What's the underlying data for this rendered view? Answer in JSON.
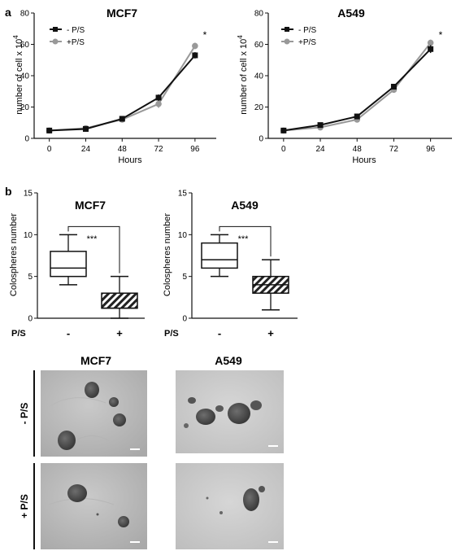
{
  "panel_labels": {
    "a": "a",
    "b": "b"
  },
  "line_charts": [
    {
      "title": "MCF7",
      "ylabel_main": "number of cell x 10",
      "ylabel_exp": "4",
      "xlabel": "Hours",
      "star": "*",
      "legend": [
        "- P/S",
        "+P/S"
      ]
    },
    {
      "title": "A549",
      "ylabel_main": "number of cell x 10",
      "ylabel_exp": "4",
      "xlabel": "Hours",
      "star": "*",
      "legend": [
        "- P/S",
        "+P/S"
      ]
    }
  ],
  "box_charts": [
    {
      "title": "MCF7",
      "ylabel": "Colospheres number",
      "sig": "***",
      "group_label": "P/S",
      "cats": [
        "-",
        "+"
      ]
    },
    {
      "title": "A549",
      "ylabel": "Colospheres number",
      "sig": "***",
      "group_label": "P/S",
      "cats": [
        "-",
        "+"
      ]
    }
  ],
  "micrographs": {
    "col_labels": [
      "MCF7",
      "A549"
    ],
    "row_labels": [
      "- P/S",
      "+ P/S"
    ]
  },
  "colors": {
    "minus_ps": "#111111",
    "plus_ps": "#999999"
  },
  "chart_data": [
    {
      "type": "line",
      "title": "MCF7",
      "xlabel": "Hours",
      "ylabel": "number of cell x 10^4",
      "x": [
        0,
        24,
        48,
        72,
        96
      ],
      "xlim": [
        -10,
        110
      ],
      "ylim": [
        0,
        80
      ],
      "xticks": [
        0,
        24,
        48,
        72,
        96
      ],
      "yticks": [
        0,
        20,
        40,
        60,
        80
      ],
      "series": [
        {
          "name": "- P/S",
          "values": [
            5,
            6,
            12.5,
            26,
            53
          ],
          "err": [
            0.3,
            0.6,
            0.5,
            2.0,
            2.0
          ]
        },
        {
          "name": "+P/S",
          "values": [
            5,
            6.5,
            12,
            22,
            59
          ],
          "err": [
            0.3,
            0.6,
            0.5,
            2.5,
            2.0
          ]
        }
      ]
    },
    {
      "type": "line",
      "title": "A549",
      "xlabel": "Hours",
      "ylabel": "number of cell x 10^4",
      "x": [
        0,
        24,
        48,
        72,
        96
      ],
      "xlim": [
        -10,
        110
      ],
      "ylim": [
        0,
        80
      ],
      "xticks": [
        0,
        24,
        48,
        72,
        96
      ],
      "yticks": [
        0,
        20,
        40,
        60,
        80
      ],
      "series": [
        {
          "name": "- P/S",
          "values": [
            5,
            8.5,
            14,
            33,
            57
          ],
          "err": [
            0.3,
            1.0,
            1.0,
            1.5,
            2.5
          ]
        },
        {
          "name": "+P/S",
          "values": [
            5,
            7,
            12,
            31,
            61
          ],
          "err": [
            0.3,
            1.0,
            1.0,
            1.5,
            2.0
          ]
        }
      ]
    },
    {
      "type": "box",
      "title": "MCF7",
      "ylabel": "Colospheres number",
      "categories": [
        "-",
        "+"
      ],
      "group_label": "P/S",
      "ylim": [
        0,
        15
      ],
      "yticks": [
        0,
        5,
        10,
        15
      ],
      "boxes": [
        {
          "min": 4,
          "q1": 5,
          "median": 6,
          "q3": 8,
          "max": 10,
          "fill": "white"
        },
        {
          "min": 0,
          "q1": 1.2,
          "median": 1.2,
          "q3": 3,
          "max": 5,
          "fill": "hatched"
        }
      ]
    },
    {
      "type": "box",
      "title": "A549",
      "ylabel": "Colospheres number",
      "categories": [
        "-",
        "+"
      ],
      "group_label": "P/S",
      "ylim": [
        0,
        15
      ],
      "yticks": [
        0,
        5,
        10,
        15
      ],
      "boxes": [
        {
          "min": 5,
          "q1": 6,
          "median": 7,
          "q3": 9,
          "max": 10,
          "fill": "white"
        },
        {
          "min": 1,
          "q1": 3,
          "median": 4,
          "q3": 5,
          "max": 7,
          "fill": "hatched"
        }
      ]
    }
  ]
}
